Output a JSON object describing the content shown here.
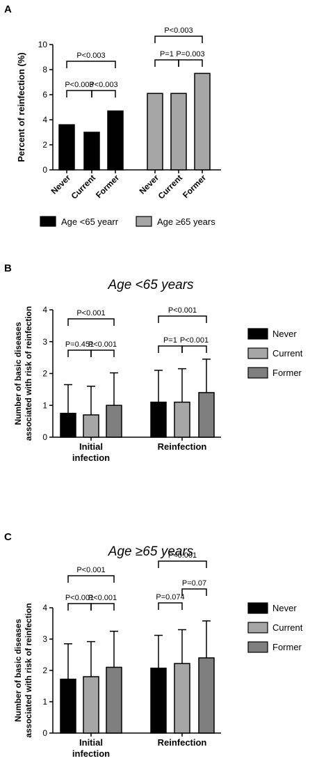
{
  "chart_data": [
    {
      "panel": "A",
      "type": "bar",
      "ylabel": "Percent of reinfection (%)",
      "ylim": [
        0,
        10
      ],
      "yticks": [
        0,
        2,
        4,
        6,
        8,
        10
      ],
      "categories": [
        "Never",
        "Current",
        "Former",
        "Never",
        "Current",
        "Former"
      ],
      "groups": [
        {
          "name": "Age <65 yearr",
          "values": [
            3.6,
            3.0,
            4.7
          ],
          "color": "#000000"
        },
        {
          "name": "Age ≥65 years",
          "values": [
            6.1,
            6.1,
            7.7
          ],
          "color": "#a6a6a6"
        }
      ],
      "legend": [
        {
          "label": "Age <65 yearr",
          "color": "#000000"
        },
        {
          "label": "Age ≥65 years",
          "color": "#a6a6a6"
        }
      ],
      "annotations": [
        {
          "group": 0,
          "from": 0,
          "to": 1,
          "level": 130,
          "label": "P<0.003"
        },
        {
          "group": 0,
          "from": 1,
          "to": 2,
          "level": 130,
          "label": "P<0.003"
        },
        {
          "group": 0,
          "from": 0,
          "to": 2,
          "level": 88,
          "label": "P<0.003"
        },
        {
          "group": 1,
          "from": 0,
          "to": 1,
          "level": 86,
          "label": "P=1"
        },
        {
          "group": 1,
          "from": 1,
          "to": 2,
          "level": 86,
          "label": "P=0.003"
        },
        {
          "group": 1,
          "from": 0,
          "to": 2,
          "level": 52,
          "label": "P<0.003"
        }
      ]
    },
    {
      "panel": "B",
      "type": "bar",
      "title": "Age <65 years",
      "ylabel": "Number of basic diseases associated with risk of reinfection",
      "ylim": [
        0,
        4
      ],
      "yticks": [
        0,
        1,
        2,
        3,
        4
      ],
      "categories": [
        "Initial infection",
        "Reinfection"
      ],
      "series": [
        {
          "name": "Never",
          "color": "#000000",
          "values": [
            0.75,
            1.1
          ],
          "errors": [
            0.9,
            1.0
          ]
        },
        {
          "name": "Current",
          "color": "#a6a6a6",
          "values": [
            0.7,
            1.1
          ],
          "errors": [
            0.9,
            1.05
          ]
        },
        {
          "name": "Former",
          "color": "#7f7f7f",
          "values": [
            1.0,
            1.4
          ],
          "errors": [
            1.02,
            1.05
          ]
        }
      ],
      "annotations": [
        {
          "group": 0,
          "from": 0,
          "to": 1,
          "level": 503,
          "label": "P=0.451"
        },
        {
          "group": 0,
          "from": 1,
          "to": 2,
          "level": 503,
          "label": "P<0.001"
        },
        {
          "group": 0,
          "from": 0,
          "to": 2,
          "level": 458,
          "label": "P<0.001"
        },
        {
          "group": 1,
          "from": 0,
          "to": 1,
          "level": 497,
          "label": "P=1"
        },
        {
          "group": 1,
          "from": 1,
          "to": 2,
          "level": 497,
          "label": "P<0.001"
        },
        {
          "group": 1,
          "from": 0,
          "to": 2,
          "level": 454,
          "label": "P<0.001"
        }
      ]
    },
    {
      "panel": "C",
      "type": "bar",
      "title": "Age ≥65 years",
      "ylabel": "Number of basic diseases associated with risk of reinfection",
      "ylim": [
        0,
        4
      ],
      "yticks": [
        0,
        1,
        2,
        3,
        4
      ],
      "categories": [
        "Initial infection",
        "Reinfection"
      ],
      "series": [
        {
          "name": "Never",
          "color": "#000000",
          "values": [
            1.72,
            2.07
          ],
          "errors": [
            1.13,
            1.05
          ]
        },
        {
          "name": "Current",
          "color": "#a6a6a6",
          "values": [
            1.8,
            2.22
          ],
          "errors": [
            1.12,
            1.08
          ]
        },
        {
          "name": "Former",
          "color": "#7f7f7f",
          "values": [
            2.1,
            2.4
          ],
          "errors": [
            1.15,
            1.18
          ]
        }
      ],
      "annotations": [
        {
          "group": 0,
          "from": 0,
          "to": 1,
          "level": 867,
          "label": "P<0.001"
        },
        {
          "group": 0,
          "from": 1,
          "to": 2,
          "level": 867,
          "label": "P<0.001"
        },
        {
          "group": 0,
          "from": 0,
          "to": 2,
          "level": 827,
          "label": "P<0.001"
        },
        {
          "group": 1,
          "from": 0,
          "to": 1,
          "level": 866,
          "label": "P=0.074"
        },
        {
          "group": 1,
          "from": 1,
          "to": 2,
          "level": 846,
          "label": "P=0.07"
        },
        {
          "group": 1,
          "from": 0,
          "to": 2,
          "level": 806,
          "label": "P<0.001"
        }
      ]
    }
  ]
}
